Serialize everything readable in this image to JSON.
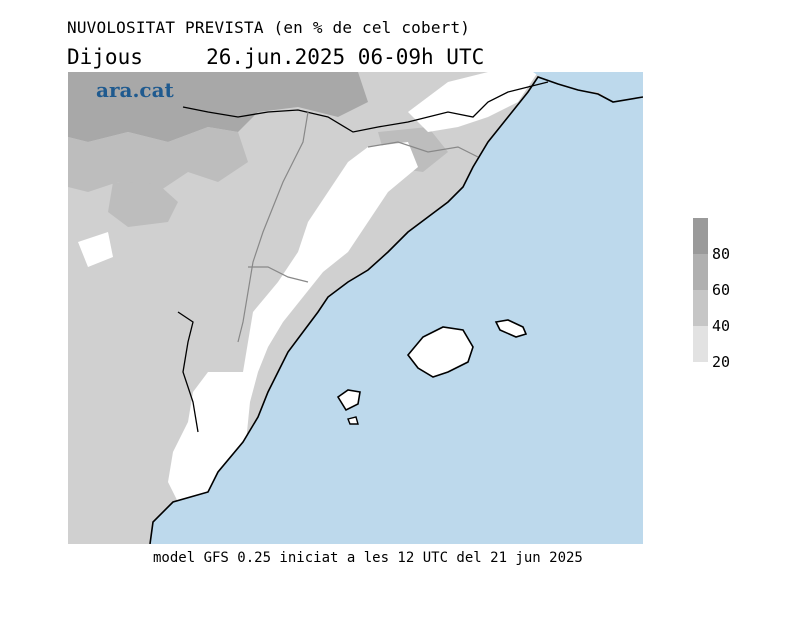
{
  "header": {
    "title": "NUVOLOSITAT PREVISTA (en % de cel cobert)",
    "subtitle_day": "Dijous",
    "subtitle_date": "26.jun.2025 06-09h UTC"
  },
  "brand": {
    "logo_text": "ara.cat",
    "color": "#1f5a8f"
  },
  "legend": {
    "levels": [
      {
        "label": "80",
        "color": "#a8a8a8"
      },
      {
        "label": "60",
        "color": "#bdbdbd"
      },
      {
        "label": "40",
        "color": "#d0d0d0"
      },
      {
        "label": "20",
        "color": "#e2e2e2"
      }
    ],
    "top_color": "#9a9a9a"
  },
  "map": {
    "sea_color": "#bdd9ec",
    "land_clear_color": "#ffffff"
  },
  "footer": {
    "text": "model GFS 0.25 iniciat a les 12 UTC del 21 jun 2025"
  }
}
